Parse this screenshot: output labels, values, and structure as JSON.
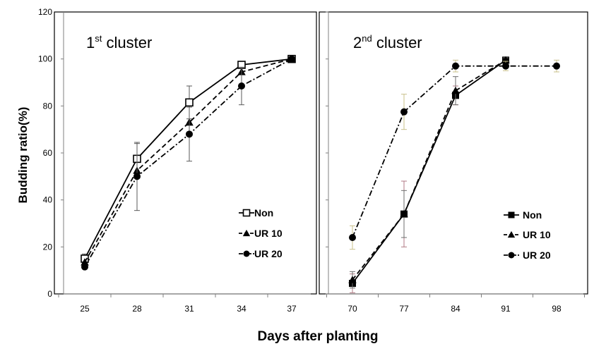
{
  "chart_data": {
    "type": "line",
    "ylabel": "Budding ratio(%)",
    "xlabel": "Days after planting",
    "ylim": [
      0,
      120
    ],
    "yticks": [
      "0",
      "20",
      "40",
      "60",
      "80",
      "100",
      "120"
    ],
    "panels": [
      {
        "title_main": "1",
        "title_sup": "st",
        "title_rest": " cluster",
        "categories": [
          "25",
          "28",
          "31",
          "34",
          "37"
        ],
        "series": [
          {
            "name": "Non",
            "marker": "square-open",
            "dash": "solid",
            "values": [
              15,
              57.5,
              81.5,
              97.5,
              100
            ],
            "errors": [
              2,
              6.5,
              7,
              1,
              0
            ]
          },
          {
            "name": "UR 10",
            "marker": "triangle",
            "dash": "dashed",
            "values": [
              13.5,
              52.5,
              73,
              94.5,
              100
            ],
            "errors": [
              0,
              0,
              0,
              0,
              0
            ]
          },
          {
            "name": "UR 20",
            "marker": "circle",
            "dash": "dashdot",
            "values": [
              11.5,
              50,
              68,
              88.5,
              100
            ],
            "errors": [
              0,
              14.5,
              11.5,
              8,
              0
            ]
          }
        ]
      },
      {
        "title_main": "2",
        "title_sup": "nd",
        "title_rest": " cluster",
        "categories": [
          "70",
          "77",
          "84",
          "91",
          "98"
        ],
        "series": [
          {
            "name": "Non",
            "marker": "square",
            "dash": "solid",
            "values": [
              4.5,
              34,
              84.5,
              99.5,
              null
            ],
            "errors": [
              4,
              14,
              4,
              1,
              0
            ]
          },
          {
            "name": "UR 10",
            "marker": "triangle",
            "dash": "dashed",
            "values": [
              6,
              34,
              86.5,
              99.5,
              null
            ],
            "errors": [
              3.5,
              10,
              6,
              1,
              0
            ]
          },
          {
            "name": "UR 20",
            "marker": "circle",
            "dash": "dashdot",
            "values": [
              24,
              77.5,
              97,
              97,
              97
            ],
            "errors": [
              5,
              7.5,
              2.5,
              2,
              2.5
            ]
          }
        ]
      }
    ]
  }
}
